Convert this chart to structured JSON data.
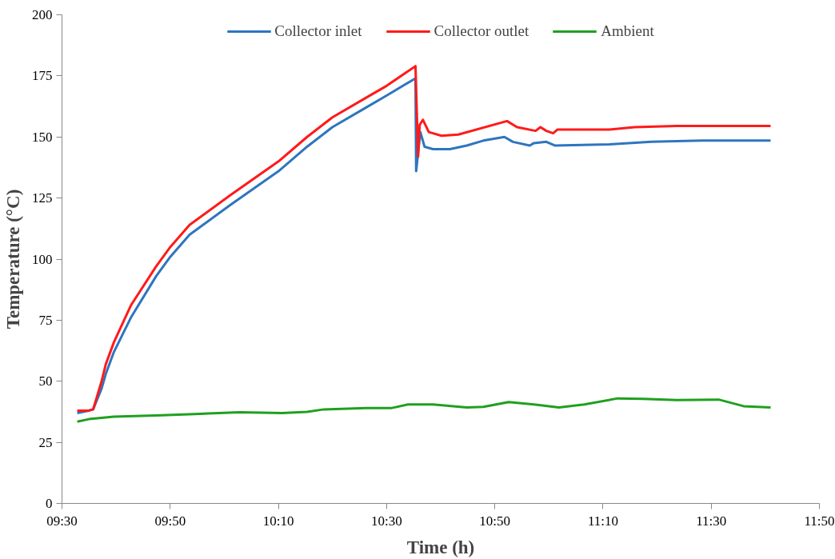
{
  "chart_data": {
    "type": "line",
    "xlabel": "Time (h)",
    "ylabel": "Temperature (°C)",
    "xlim": [
      9.5,
      11.8333
    ],
    "xticks": [
      {
        "value": 9.5,
        "label": "09:30"
      },
      {
        "value": 9.8333,
        "label": "09:50"
      },
      {
        "value": 10.1667,
        "label": "10:10"
      },
      {
        "value": 10.5,
        "label": "10:30"
      },
      {
        "value": 10.8333,
        "label": "10:50"
      },
      {
        "value": 11.1667,
        "label": "11:10"
      },
      {
        "value": 11.5,
        "label": "11:30"
      },
      {
        "value": 11.8333,
        "label": "11:50"
      }
    ],
    "ylim": [
      0,
      200
    ],
    "yticks": [
      0,
      25,
      50,
      75,
      100,
      125,
      150,
      175,
      200
    ],
    "grid": false,
    "legend": "top",
    "marker": "none",
    "line_style": "solid",
    "series": [
      {
        "name": "Collector inlet",
        "color": "#2e75c0",
        "x": [
          9.547,
          9.583,
          9.596,
          9.622,
          9.635,
          9.66,
          9.712,
          9.79,
          9.834,
          9.893,
          10.017,
          10.167,
          10.255,
          10.333,
          10.436,
          10.501,
          10.589,
          10.591,
          10.604,
          10.617,
          10.643,
          10.695,
          10.747,
          10.798,
          10.863,
          10.889,
          10.941,
          10.954,
          10.992,
          11.018,
          11.186,
          11.316,
          11.471,
          11.683
        ],
        "values": [
          37,
          38,
          38.5,
          47,
          53,
          62,
          76,
          93,
          101,
          110,
          122,
          136,
          146,
          154,
          162,
          167,
          174,
          136,
          152,
          146,
          145,
          145,
          146.5,
          148.5,
          150,
          148,
          146.5,
          147.5,
          148,
          146.5,
          147,
          148,
          148.5,
          148.5
        ]
      },
      {
        "name": "Collector outlet",
        "color": "#ff1a1a",
        "x": [
          9.547,
          9.583,
          9.596,
          9.622,
          9.635,
          9.66,
          9.712,
          9.79,
          9.834,
          9.893,
          10.017,
          10.167,
          10.255,
          10.333,
          10.436,
          10.501,
          10.589,
          10.597,
          10.602,
          10.612,
          10.63,
          10.669,
          10.721,
          10.871,
          10.902,
          10.959,
          10.974,
          10.992,
          11.013,
          11.026,
          11.186,
          11.264,
          11.393,
          11.683
        ],
        "values": [
          38,
          38,
          38.5,
          50,
          57,
          66,
          81,
          97,
          105,
          114,
          126,
          140,
          150,
          158,
          166,
          171,
          179,
          142,
          155,
          157,
          152,
          150.5,
          151,
          156.5,
          154,
          152.5,
          154,
          152.5,
          151.5,
          153,
          153,
          154,
          154.5,
          154.5
        ]
      },
      {
        "name": "Ambient",
        "color": "#1fa01f",
        "x": [
          9.547,
          9.583,
          9.66,
          9.79,
          9.893,
          10.048,
          10.178,
          10.255,
          10.307,
          10.436,
          10.514,
          10.566,
          10.643,
          10.747,
          10.798,
          10.876,
          10.954,
          11.031,
          11.109,
          11.212,
          11.29,
          11.393,
          11.523,
          11.6,
          11.683
        ],
        "values": [
          33.5,
          34.5,
          35.5,
          36,
          36.5,
          37.3,
          37,
          37.5,
          38.5,
          39,
          39,
          40.5,
          40.5,
          39.3,
          39.5,
          41.5,
          40.5,
          39.3,
          40.5,
          43,
          42.8,
          42.3,
          42.5,
          39.8,
          39.3
        ]
      }
    ]
  }
}
